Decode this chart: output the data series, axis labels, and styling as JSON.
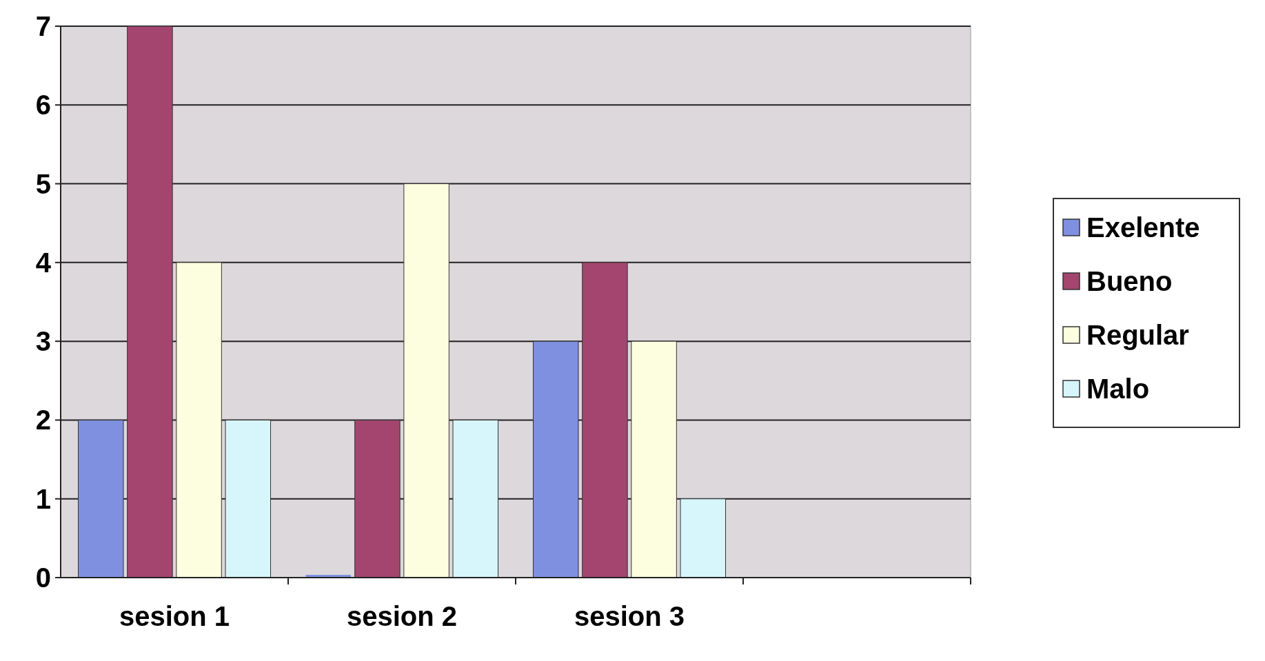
{
  "chart_data": {
    "type": "bar",
    "categories": [
      "sesion 1",
      "sesion 2",
      "sesion 3",
      null
    ],
    "series": [
      {
        "name": "Exelente",
        "color": "#7f90e0",
        "values": [
          2,
          0,
          3,
          null
        ]
      },
      {
        "name": "Bueno",
        "color": "#a3456f",
        "values": [
          7,
          2,
          4,
          null
        ]
      },
      {
        "name": "Regular",
        "color": "#fdfde0",
        "values": [
          4,
          5,
          3,
          null
        ]
      },
      {
        "name": "Malo",
        "color": "#d6f6fc",
        "values": [
          2,
          2,
          1,
          null
        ]
      }
    ],
    "ylim": [
      0,
      7
    ],
    "yticks": [
      0,
      1,
      2,
      3,
      4,
      5,
      6,
      7
    ],
    "grid": "y",
    "legend": "right"
  }
}
